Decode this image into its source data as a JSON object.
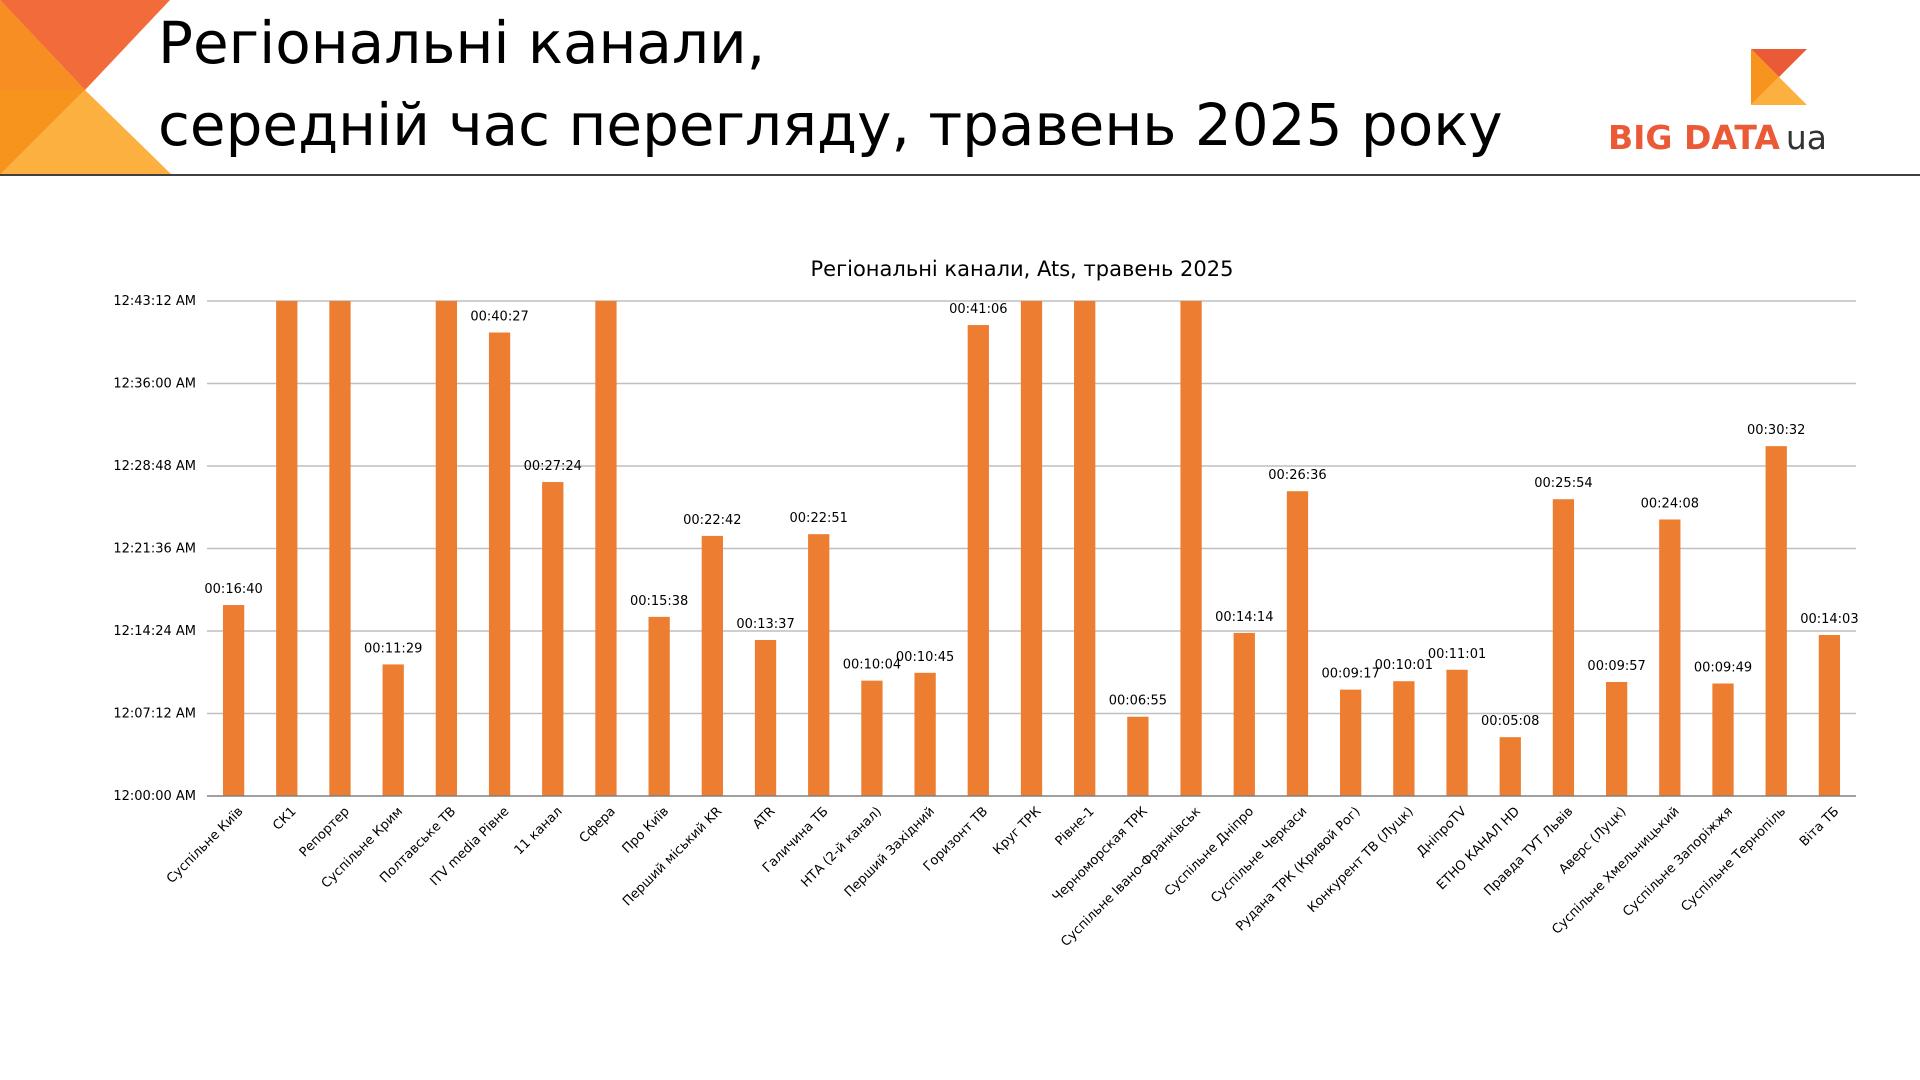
{
  "header": {
    "title_line1": "Регіональні канали,",
    "title_line2": "середній час перегляду, травень 2025 року"
  },
  "logo": {
    "text": "BIG DATA",
    "suffix": "ua",
    "icon": "big-data-logo-icon",
    "colors": {
      "orange": "#f7941d",
      "red": "#ea5a36",
      "yellow": "#fbb040"
    }
  },
  "colors": {
    "bar": "#ed7d31",
    "grid": "#bfbfbf",
    "axis": "#808080"
  },
  "chart_data": {
    "type": "bar",
    "title": "Регіональні канали, Ats, травень 2025",
    "xlabel": "",
    "ylabel": "",
    "y_unit": "seconds",
    "ylim": [
      0,
      2592
    ],
    "yticks": [
      0,
      432,
      864,
      1296,
      1728,
      2160,
      2592
    ],
    "ytick_labels": [
      "12:00:00 AM",
      "12:07:12 AM",
      "12:14:24 AM",
      "12:21:36 AM",
      "12:28:48 AM",
      "12:36:00 AM",
      "12:43:12 AM"
    ],
    "grid": true,
    "legend": "none",
    "categories": [
      "Суспільне Київ",
      "СК1",
      "Репортер",
      "Суспільне Крим",
      "Полтавське ТВ",
      "ITV media Рівне",
      "11 канал",
      "Сфера",
      "Про Київ",
      "Перший міський KR",
      "ATR",
      "Галичина ТБ",
      "НТА (2-й канал)",
      "Перший Західний",
      "Горизонт ТВ",
      "Круг ТРК",
      "Рівне-1",
      "Черноморская ТРК",
      "Суспільне Івано-Франківськ",
      "Суспільне Дніпро",
      "Суспільне Черкаси",
      "Рудана ТРК (Кривой Рог)",
      "Конкурент ТВ (Луцк)",
      "ДніпроTV",
      "ЕТНО КАНАЛ HD",
      "Правда ТУТ Львів",
      "Аверс (Луцк)",
      "Суспільне Хмельницький",
      "Суспільне Запоріжжя",
      "Суспільне Тернопіль",
      "Віта ТБ"
    ],
    "values": [
      1000,
      2592,
      2592,
      689,
      2592,
      2427,
      1644,
      2592,
      938,
      1362,
      817,
      1371,
      604,
      645,
      2466,
      2592,
      2592,
      415,
      2592,
      854,
      1596,
      557,
      601,
      661,
      308,
      1554,
      597,
      1448,
      589,
      1832,
      843
    ],
    "data_labels": [
      "00:16:40",
      "",
      "",
      "00:11:29",
      "",
      "00:40:27",
      "00:27:24",
      "",
      "00:15:38",
      "00:22:42",
      "00:13:37",
      "00:22:51",
      "00:10:04",
      "00:10:45",
      "00:41:06",
      "",
      "",
      "00:06:55",
      "",
      "00:14:14",
      "00:26:36",
      "00:09:17",
      "00:10:01",
      "00:11:01",
      "00:05:08",
      "00:25:54",
      "00:09:57",
      "00:24:08",
      "00:09:49",
      "00:30:32",
      "00:14:03"
    ]
  }
}
